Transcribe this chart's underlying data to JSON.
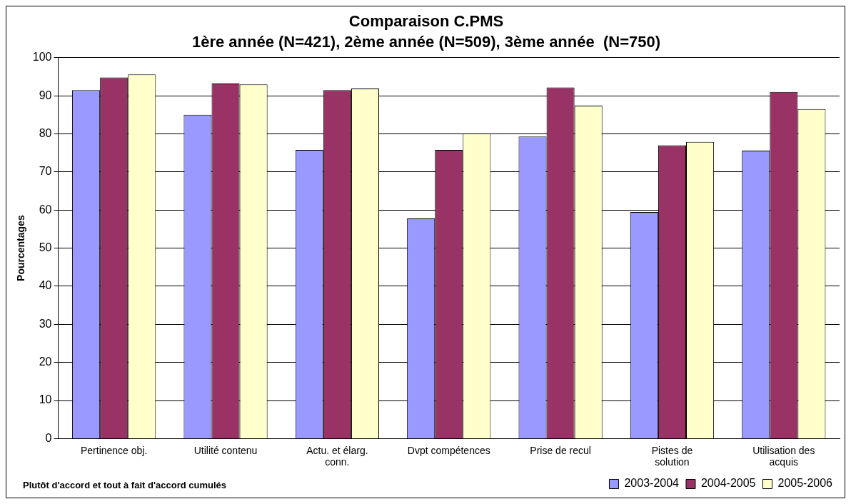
{
  "chart_data": {
    "type": "bar",
    "title": "Comparaison C.PMS",
    "subtitle": "1ère année (N=421), 2ème année (N=509), 3ème année  (N=750)",
    "ylabel": "Pourcentages",
    "categories": [
      "Pertinence obj.",
      "Utilité contenu",
      "Actu. et élarg. conn.",
      "Dvpt compétences",
      "Prise de recul",
      "Pistes de solution",
      "Utilisation des acquis"
    ],
    "series": [
      {
        "name": "2003-2004",
        "color": "#9999ff",
        "values": [
          91.5,
          85,
          75.8,
          57.8,
          79.3,
          59.5,
          75.6
        ]
      },
      {
        "name": "2004-2005",
        "color": "#993366",
        "values": [
          94.8,
          93.2,
          91.5,
          75.8,
          92.2,
          77,
          91
        ]
      },
      {
        "name": "2005-2006",
        "color": "#ffffcc",
        "values": [
          95.6,
          93,
          91.9,
          80.1,
          87.4,
          77.9,
          86.5
        ]
      }
    ],
    "ylim": [
      0,
      100
    ],
    "yticks": [
      0,
      10,
      20,
      30,
      40,
      50,
      60,
      70,
      80,
      90,
      100
    ],
    "grid": "y",
    "legend": "bottom right",
    "annotations": [
      "Plutôt d'accord et tout à fait d'accord cumulés"
    ]
  }
}
